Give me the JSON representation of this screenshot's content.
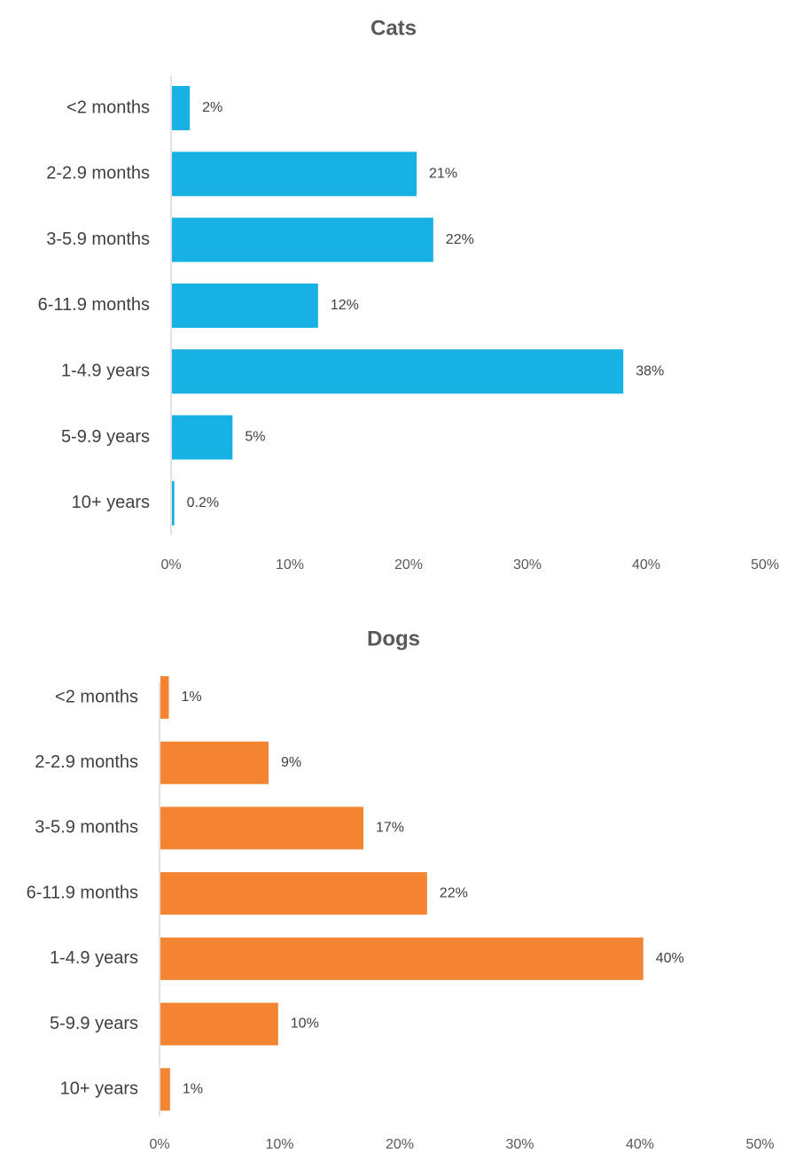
{
  "chart_data": [
    {
      "type": "bar",
      "orientation": "horizontal",
      "title": "Cats",
      "categories": [
        "<2 months",
        "2-2.9 months",
        "3-5.9 months",
        "6-11.9 months",
        "1-4.9 years",
        "5-9.9 years",
        "10+ years"
      ],
      "values": [
        1.5,
        20.6,
        22.0,
        12.3,
        38.0,
        5.1,
        0.2
      ],
      "data_labels": [
        "2%",
        "21%",
        "22%",
        "12%",
        "38%",
        "5%",
        "0.2%"
      ],
      "xlim": [
        0,
        50
      ],
      "x_ticks": [
        "0%",
        "10%",
        "20%",
        "30%",
        "40%",
        "50%"
      ],
      "color": "#17b2e3",
      "grid": false
    },
    {
      "type": "bar",
      "orientation": "horizontal",
      "title": "Dogs",
      "categories": [
        "<2 months",
        "2-2.9 months",
        "3-5.9 months",
        "6-11.9 months",
        "1-4.9 years",
        "5-9.9 years",
        "10+ years"
      ],
      "values": [
        0.7,
        9.0,
        16.9,
        22.2,
        40.2,
        9.8,
        0.8
      ],
      "data_labels": [
        "1%",
        "9%",
        "17%",
        "22%",
        "40%",
        "10%",
        "1%"
      ],
      "xlim": [
        0,
        50
      ],
      "x_ticks": [
        "0%",
        "10%",
        "20%",
        "30%",
        "40%",
        "50%"
      ],
      "color": "#f38431",
      "grid": false
    }
  ]
}
